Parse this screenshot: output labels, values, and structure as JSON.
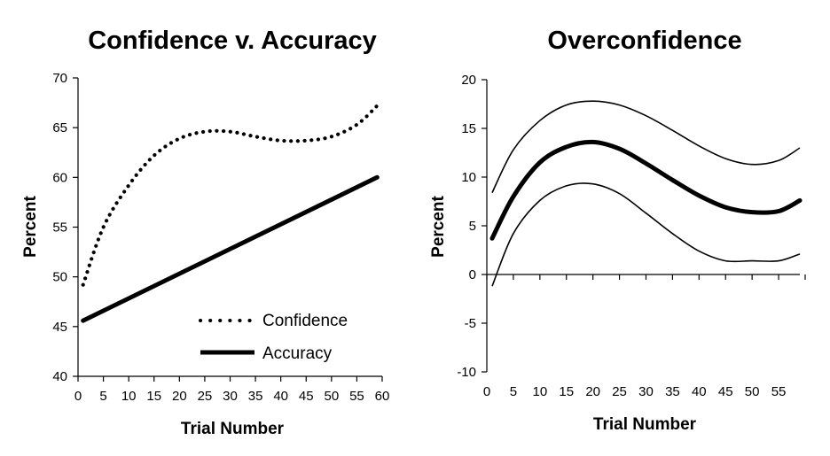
{
  "chart_data": [
    {
      "type": "line",
      "title": "Confidence v. Accuracy",
      "xlabel": "Trial Number",
      "ylabel": "Percent",
      "xlim": [
        0,
        60
      ],
      "ylim": [
        40,
        70
      ],
      "x_ticks": [
        "0",
        "5",
        "10",
        "15",
        "20",
        "25",
        "30",
        "35",
        "40",
        "45",
        "50",
        "55",
        "60"
      ],
      "y_ticks": [
        "40",
        "45",
        "50",
        "55",
        "60",
        "65",
        "70"
      ],
      "grid": false,
      "legend_position": "bottom-right",
      "series": [
        {
          "name": "Confidence",
          "style": "dotted",
          "color": "#000000",
          "x": [
            1,
            5,
            10,
            15,
            20,
            25,
            30,
            35,
            40,
            45,
            50,
            55,
            59
          ],
          "y": [
            49.2,
            55.0,
            59.2,
            62.2,
            63.9,
            64.6,
            64.6,
            64.1,
            63.7,
            63.7,
            64.1,
            65.3,
            67.2
          ]
        },
        {
          "name": "Accuracy",
          "style": "solid-thick",
          "color": "#000000",
          "x": [
            1,
            59
          ],
          "y": [
            45.6,
            60.0
          ]
        }
      ]
    },
    {
      "type": "line",
      "title": "Overconfidence",
      "xlabel": "Trial Number",
      "ylabel": "Percent",
      "xlim": [
        0,
        59
      ],
      "ylim": [
        -10,
        20
      ],
      "x_ticks": [
        "0",
        "5",
        "10",
        "15",
        "20",
        "25",
        "30",
        "35",
        "40",
        "45",
        "50",
        "55"
      ],
      "y_ticks": [
        "-10",
        "-5",
        "0",
        "5",
        "10",
        "15",
        "20"
      ],
      "grid": false,
      "series": [
        {
          "role": "upper-band",
          "style": "solid-thin",
          "color": "#000000",
          "x": [
            1,
            5,
            10,
            15,
            20,
            25,
            30,
            35,
            40,
            45,
            50,
            55,
            59
          ],
          "y": [
            8.4,
            12.8,
            15.8,
            17.4,
            17.8,
            17.4,
            16.3,
            14.8,
            13.2,
            11.9,
            11.3,
            11.7,
            13.0
          ]
        },
        {
          "role": "estimate",
          "style": "solid-thick",
          "color": "#000000",
          "x": [
            1,
            5,
            10,
            15,
            20,
            25,
            30,
            35,
            40,
            45,
            50,
            55,
            59
          ],
          "y": [
            3.7,
            8.0,
            11.5,
            13.1,
            13.6,
            12.9,
            11.4,
            9.7,
            8.1,
            6.9,
            6.4,
            6.5,
            7.6
          ]
        },
        {
          "role": "lower-band",
          "style": "solid-thin",
          "color": "#000000",
          "x": [
            1,
            5,
            10,
            15,
            20,
            25,
            30,
            35,
            40,
            45,
            50,
            55,
            59
          ],
          "y": [
            -1.2,
            4.2,
            7.6,
            9.1,
            9.3,
            8.3,
            6.3,
            4.2,
            2.4,
            1.4,
            1.4,
            1.4,
            2.1
          ]
        }
      ]
    }
  ]
}
